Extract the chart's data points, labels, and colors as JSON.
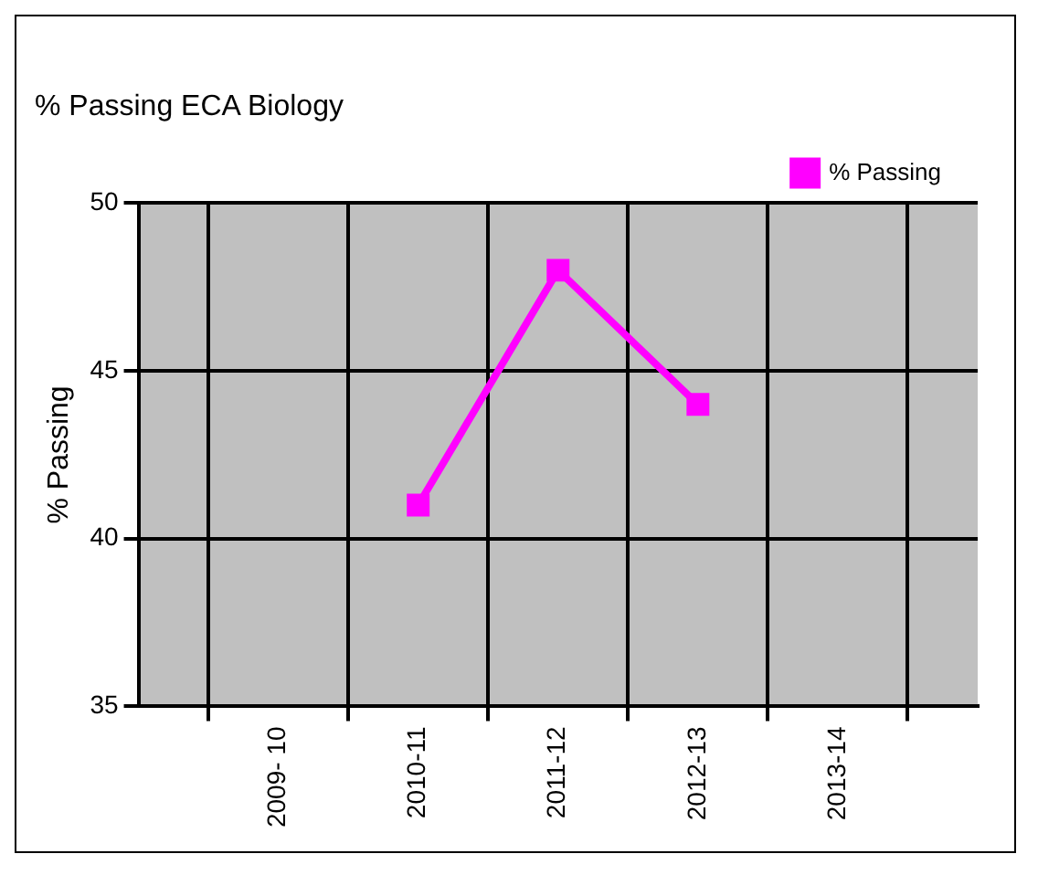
{
  "chart_data": {
    "type": "line",
    "title": "% Passing ECA Biology",
    "ylabel": "% Passing",
    "categories": [
      null,
      "2009- 10",
      "2010-11",
      "2011-12",
      "2012-13",
      "2013-14",
      null
    ],
    "series": [
      {
        "name": "% Passing",
        "color": "#ff00ff",
        "values": [
          null,
          null,
          41,
          48,
          44,
          null,
          null
        ]
      }
    ],
    "ylim": [
      35,
      50
    ],
    "yticks": [
      35,
      40,
      45,
      50
    ],
    "grid": true,
    "legend": "top right",
    "marker": "square"
  }
}
